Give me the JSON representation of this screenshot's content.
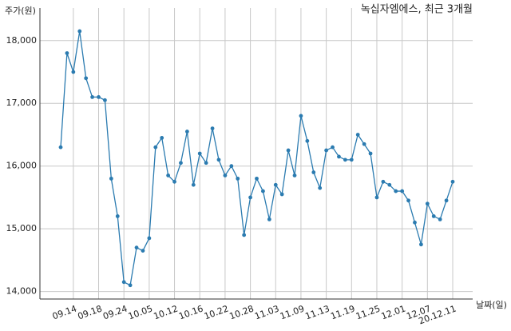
{
  "chart_data": {
    "type": "line",
    "title": "녹십자엠에스, 최근 3개월",
    "y_label": "주가(원)",
    "x_label": "날짜(일)",
    "categories": [
      null,
      null,
      "09.14",
      null,
      null,
      null,
      "09.18",
      null,
      null,
      null,
      "09.24",
      null,
      null,
      null,
      "10.05",
      null,
      null,
      null,
      "10.12",
      null,
      null,
      null,
      "10.16",
      null,
      null,
      null,
      "10.22",
      null,
      null,
      null,
      "10.28",
      null,
      null,
      null,
      "11.03",
      null,
      null,
      null,
      "11.09",
      null,
      null,
      null,
      "11.13",
      null,
      null,
      null,
      "11.19",
      null,
      null,
      null,
      "11.25",
      null,
      null,
      null,
      "12.01",
      null,
      null,
      null,
      "12.07",
      null,
      null,
      null,
      "20.12.11"
    ],
    "values": [
      16300,
      17800,
      17500,
      18150,
      17400,
      17100,
      17100,
      17050,
      15800,
      15200,
      14150,
      14100,
      14700,
      14650,
      14850,
      16300,
      16450,
      15850,
      15750,
      16050,
      16550,
      15700,
      16200,
      16050,
      16600,
      16100,
      15850,
      16000,
      15800,
      14900,
      15500,
      15800,
      15600,
      15150,
      15700,
      15550,
      16250,
      15850,
      16800,
      16400,
      15900,
      15650,
      16250,
      16300,
      16150,
      16100,
      16100,
      16500,
      16350,
      16200,
      15500,
      15750,
      15700,
      15600,
      15600,
      15450,
      15100,
      14750,
      15400,
      15200,
      15150,
      15450,
      15750
    ],
    "color": "#2b7bb0",
    "ylim": [
      13880,
      18520
    ],
    "yticks": [
      {
        "value": 14000,
        "label": "14,000"
      },
      {
        "value": 15000,
        "label": "15,000"
      },
      {
        "value": 16000,
        "label": "16,000"
      },
      {
        "value": 17000,
        "label": "17,000"
      },
      {
        "value": 18000,
        "label": "18,000"
      }
    ],
    "grid": true
  }
}
